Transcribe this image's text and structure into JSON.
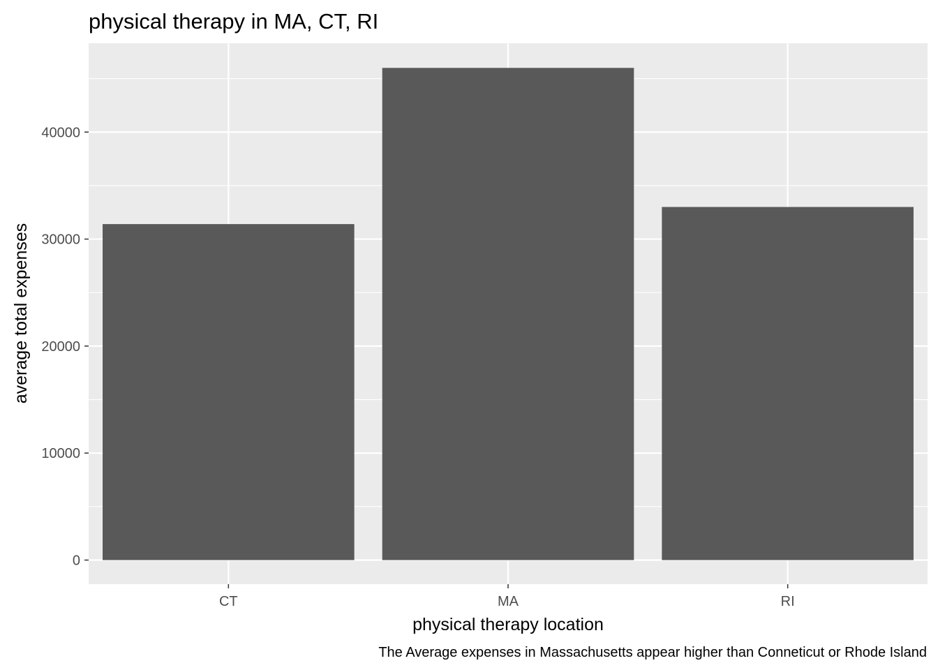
{
  "chart_data": {
    "type": "bar",
    "title": "physical therapy in MA, CT, RI",
    "xlabel": "physical therapy location",
    "ylabel": "average total expenses",
    "caption": "The Average expenses in Massachusetts appear higher than Conneticut or Rhode Island",
    "categories": [
      "CT",
      "MA",
      "RI"
    ],
    "values": [
      31400,
      46000,
      33000
    ],
    "yticks": [
      0,
      10000,
      20000,
      30000,
      40000
    ],
    "ytick_labels": [
      "0",
      "10000",
      "20000",
      "30000",
      "40000"
    ],
    "ylim": [
      -2250,
      48300
    ],
    "grid": true,
    "colors": {
      "bar": "#595959",
      "panel": "#ebebeb",
      "grid_major": "#ffffff",
      "tick_text": "#4d4d4d",
      "tick_mark": "#333333"
    }
  }
}
